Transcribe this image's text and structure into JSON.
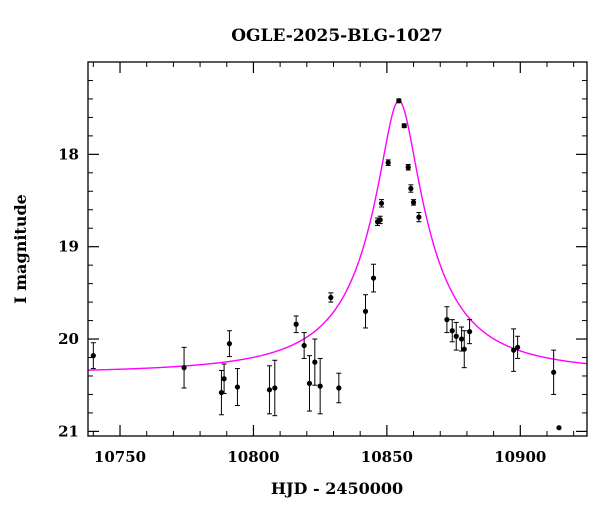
{
  "chart_data": {
    "type": "scatter",
    "title": "OGLE-2025-BLG-1027",
    "xlabel": "HJD - 2450000",
    "ylabel": "I magnitude",
    "xlim": [
      10738,
      10925
    ],
    "ylim": [
      21.05,
      17.0
    ],
    "y_inverted": true,
    "x_ticks": [
      10750,
      10800,
      10850,
      10900
    ],
    "x_minor_step": 10,
    "y_ticks": [
      18,
      19,
      20,
      21
    ],
    "y_minor_step": 0.2,
    "grid": false,
    "colors": {
      "points": "#000000",
      "model": "#ff00ff",
      "frame": "#000000"
    },
    "model": {
      "name": "",
      "t0": 10854.5,
      "baseline_mag": 20.38,
      "peak_mag": 17.42,
      "width_days": 6.2
    },
    "points": [
      {
        "x": 10740.0,
        "y": 20.18,
        "err": 0.14
      },
      {
        "x": 10774.0,
        "y": 20.31,
        "err": 0.22
      },
      {
        "x": 10788.0,
        "y": 20.58,
        "err": 0.24
      },
      {
        "x": 10789.0,
        "y": 20.43,
        "err": 0.16
      },
      {
        "x": 10791.0,
        "y": 20.05,
        "err": 0.14
      },
      {
        "x": 10794.0,
        "y": 20.52,
        "err": 0.2
      },
      {
        "x": 10806.0,
        "y": 20.55,
        "err": 0.26
      },
      {
        "x": 10808.0,
        "y": 20.53,
        "err": 0.3
      },
      {
        "x": 10816.0,
        "y": 19.84,
        "err": 0.09
      },
      {
        "x": 10819.0,
        "y": 20.07,
        "err": 0.14
      },
      {
        "x": 10821.0,
        "y": 20.48,
        "err": 0.3
      },
      {
        "x": 10823.0,
        "y": 20.25,
        "err": 0.25
      },
      {
        "x": 10825.0,
        "y": 20.51,
        "err": 0.3
      },
      {
        "x": 10829.0,
        "y": 19.55,
        "err": 0.05
      },
      {
        "x": 10832.0,
        "y": 20.53,
        "err": 0.16
      },
      {
        "x": 10842.0,
        "y": 19.7,
        "err": 0.18
      },
      {
        "x": 10845.0,
        "y": 19.34,
        "err": 0.15
      },
      {
        "x": 10846.5,
        "y": 18.73,
        "err": 0.04
      },
      {
        "x": 10847.5,
        "y": 18.71,
        "err": 0.04
      },
      {
        "x": 10848.0,
        "y": 18.53,
        "err": 0.04
      },
      {
        "x": 10850.5,
        "y": 18.09,
        "err": 0.03
      },
      {
        "x": 10854.5,
        "y": 17.42,
        "err": 0.02
      },
      {
        "x": 10856.5,
        "y": 17.69,
        "err": 0.02
      },
      {
        "x": 10858.0,
        "y": 18.14,
        "err": 0.03
      },
      {
        "x": 10859.0,
        "y": 18.37,
        "err": 0.04
      },
      {
        "x": 10860.0,
        "y": 18.52,
        "err": 0.03
      },
      {
        "x": 10862.0,
        "y": 18.68,
        "err": 0.05
      },
      {
        "x": 10872.5,
        "y": 19.79,
        "err": 0.14
      },
      {
        "x": 10874.5,
        "y": 19.91,
        "err": 0.12
      },
      {
        "x": 10876.0,
        "y": 19.97,
        "err": 0.15
      },
      {
        "x": 10878.0,
        "y": 20.0,
        "err": 0.13
      },
      {
        "x": 10879.0,
        "y": 20.11,
        "err": 0.2
      },
      {
        "x": 10881.0,
        "y": 19.92,
        "err": 0.13
      },
      {
        "x": 10897.5,
        "y": 20.12,
        "err": 0.23
      },
      {
        "x": 10899.0,
        "y": 20.09,
        "err": 0.12
      },
      {
        "x": 10912.5,
        "y": 20.36,
        "err": 0.24
      },
      {
        "x": 10914.5,
        "y": 20.96,
        "err": 0.0
      }
    ]
  }
}
